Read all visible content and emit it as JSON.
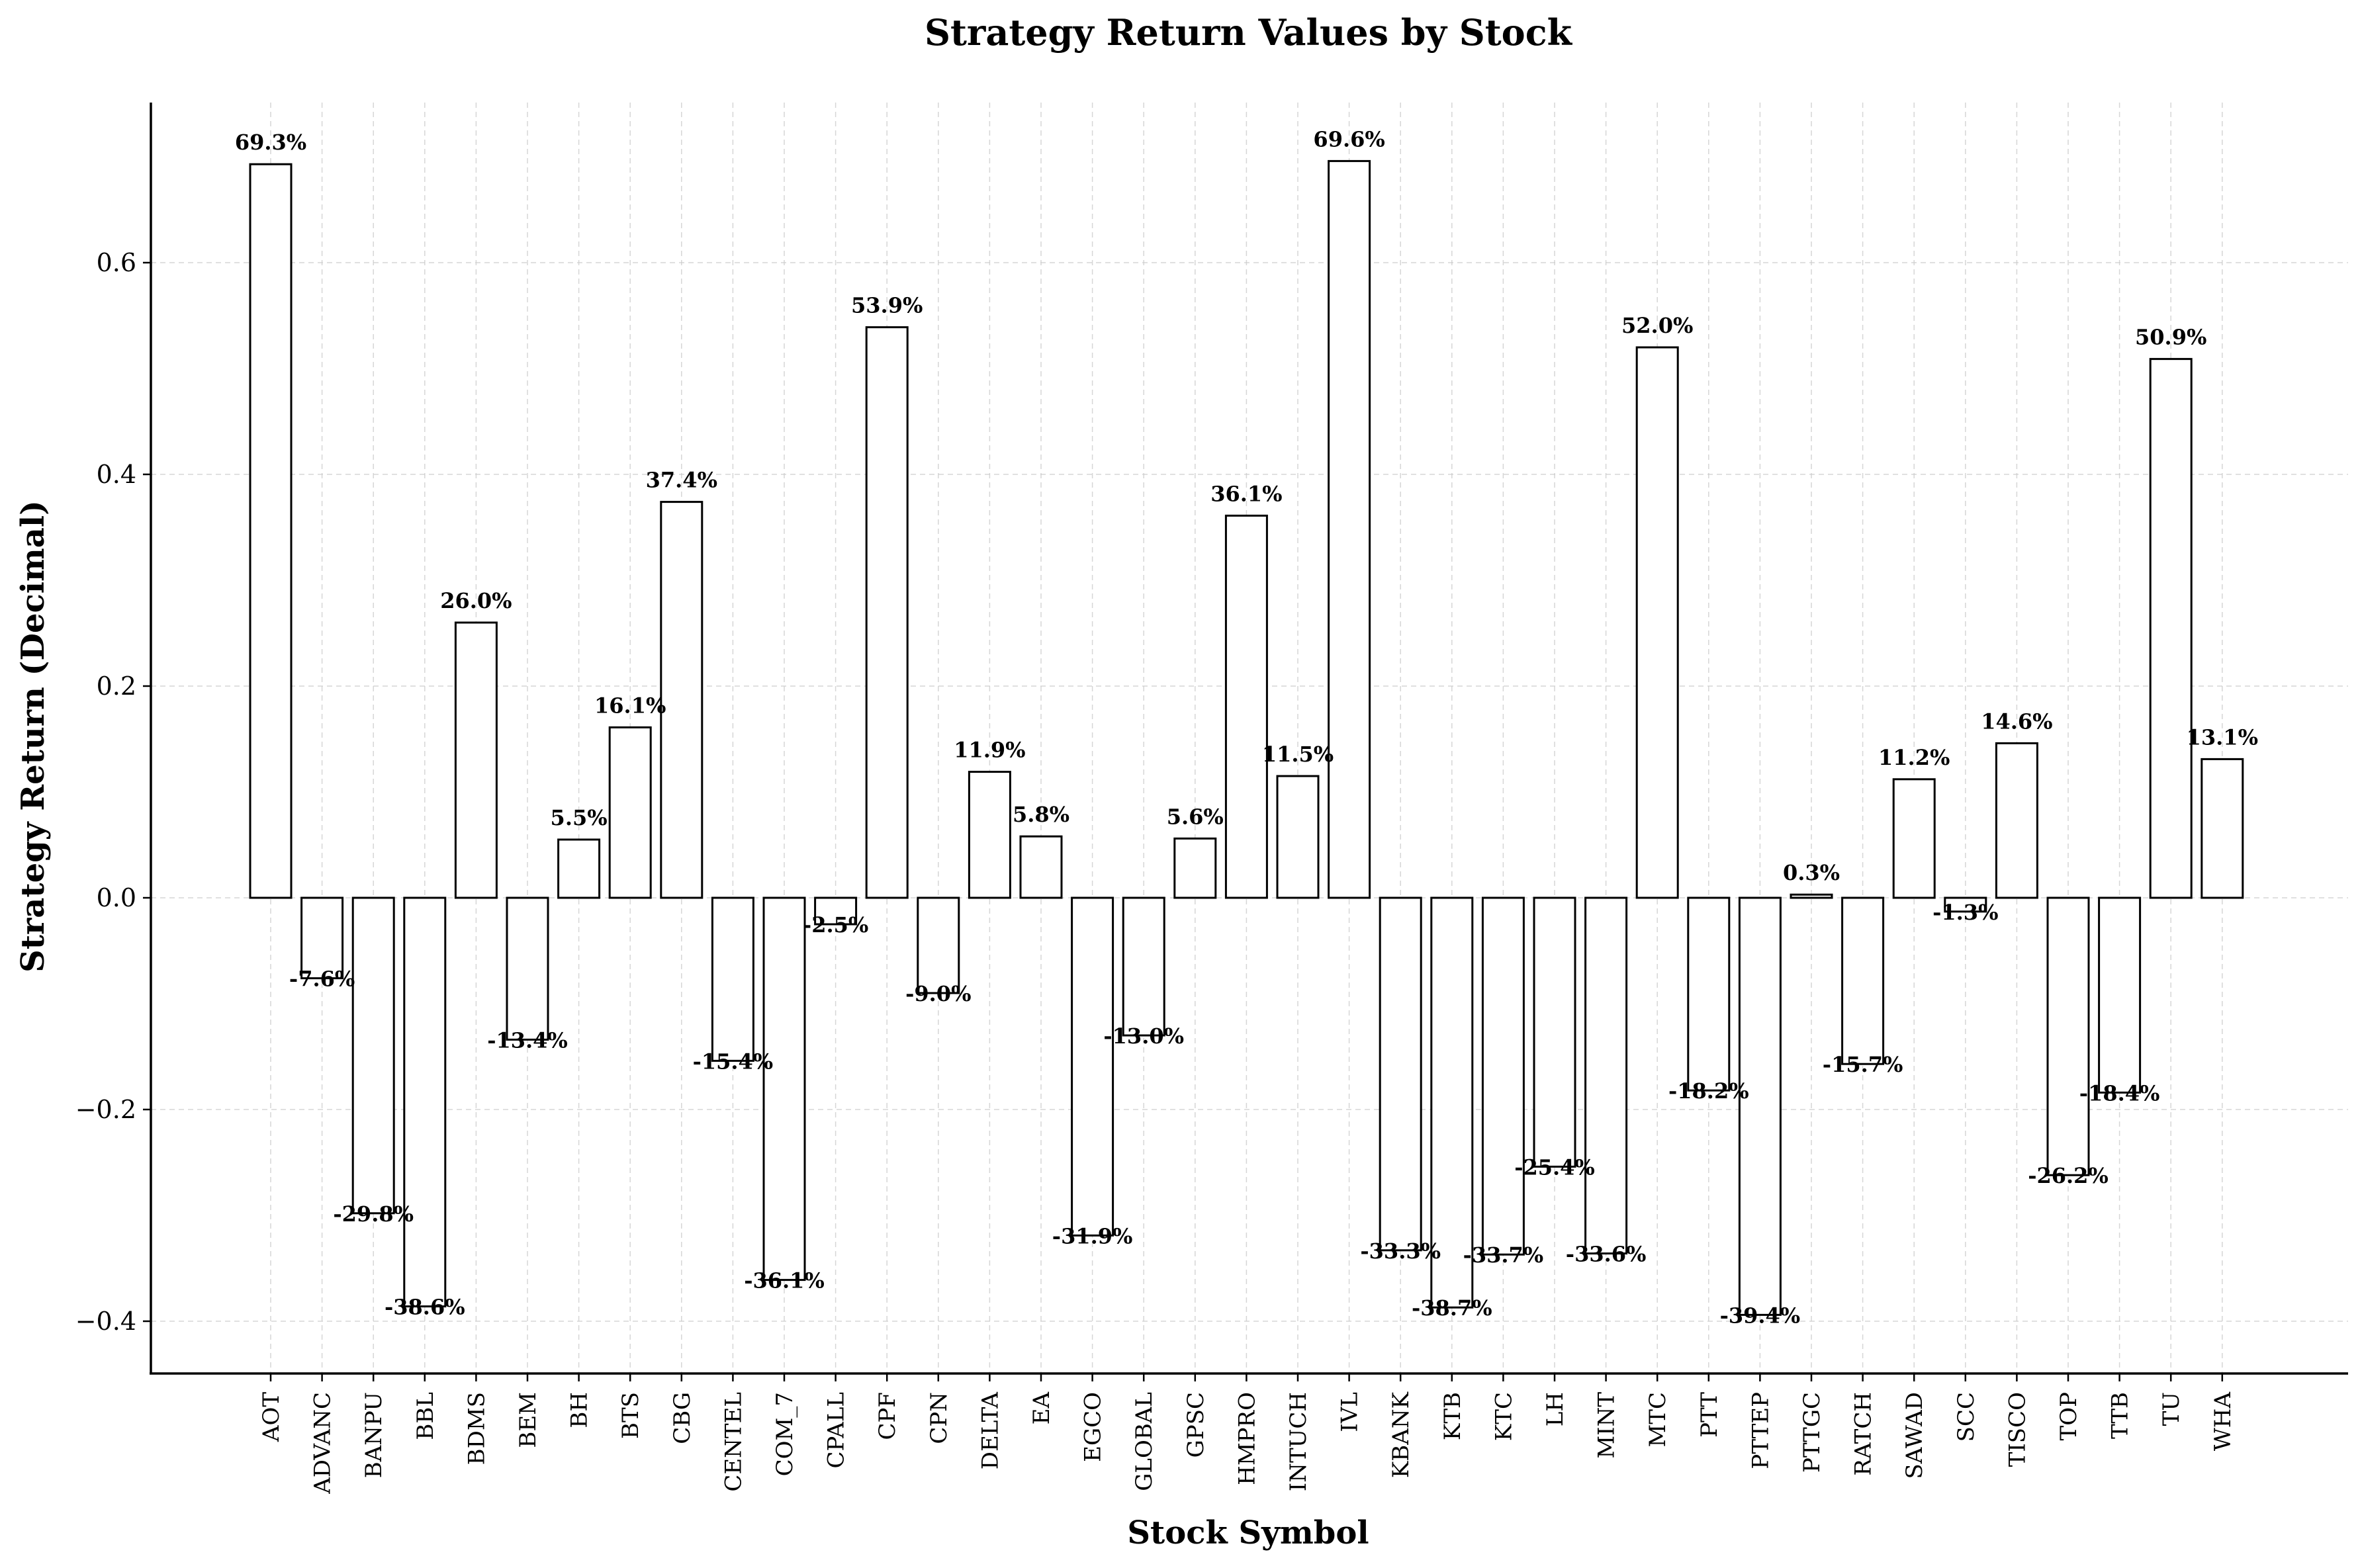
{
  "chart_data": {
    "type": "bar",
    "title": "Strategy Return Values by Stock",
    "xlabel": "Stock Symbol",
    "ylabel": "Strategy Return (Decimal)",
    "ylim": [
      -0.45,
      0.75
    ],
    "yticks": [
      -0.4,
      -0.2,
      0.0,
      0.2,
      0.4,
      0.6
    ],
    "ytick_labels": [
      "−0.4",
      "−0.2",
      "0.0",
      "0.2",
      "0.4",
      "0.6"
    ],
    "grid": true,
    "legend": "none",
    "bar_fill": "#ffffff",
    "bar_edge": "#000000",
    "categories": [
      "AOT",
      "ADVANC",
      "BANPU",
      "BBL",
      "BDMS",
      "BEM",
      "BH",
      "BTS",
      "CBG",
      "CENTEL",
      "COM_7",
      "CPALL",
      "CPF",
      "CPN",
      "DELTA",
      "EA",
      "EGCO",
      "GLOBAL",
      "GPSC",
      "HMPRO",
      "INTUCH",
      "IVL",
      "KBANK",
      "KTB",
      "KTC",
      "LH",
      "MINT",
      "MTC",
      "PTT",
      "PTTEP",
      "PTTGC",
      "RATCH",
      "SAWAD",
      "SCC",
      "TISCO",
      "TOP",
      "TTB",
      "TU",
      "WHA"
    ],
    "values": [
      0.693,
      -0.076,
      -0.298,
      -0.386,
      0.26,
      -0.134,
      0.055,
      0.161,
      0.374,
      -0.154,
      -0.361,
      -0.025,
      0.539,
      -0.09,
      0.119,
      0.058,
      -0.319,
      -0.13,
      0.056,
      0.361,
      0.115,
      0.696,
      -0.333,
      -0.387,
      -0.337,
      -0.254,
      -0.336,
      0.52,
      -0.182,
      -0.394,
      0.003,
      -0.157,
      0.112,
      -0.013,
      0.146,
      -0.262,
      -0.184,
      0.509,
      0.131
    ],
    "data_labels": [
      "69.3%",
      "-7.6%",
      "-29.8%",
      "-38.6%",
      "26.0%",
      "-13.4%",
      "5.5%",
      "16.1%",
      "37.4%",
      "-15.4%",
      "-36.1%",
      "-2.5%",
      "53.9%",
      "-9.0%",
      "11.9%",
      "5.8%",
      "-31.9%",
      "-13.0%",
      "5.6%",
      "36.1%",
      "11.5%",
      "69.6%",
      "-33.3%",
      "-38.7%",
      "-33.7%",
      "-25.4%",
      "-33.6%",
      "52.0%",
      "-18.2%",
      "-39.4%",
      "0.3%",
      "-15.7%",
      "11.2%",
      "-1.3%",
      "14.6%",
      "-26.2%",
      "-18.4%",
      "50.9%",
      "13.1%"
    ]
  }
}
